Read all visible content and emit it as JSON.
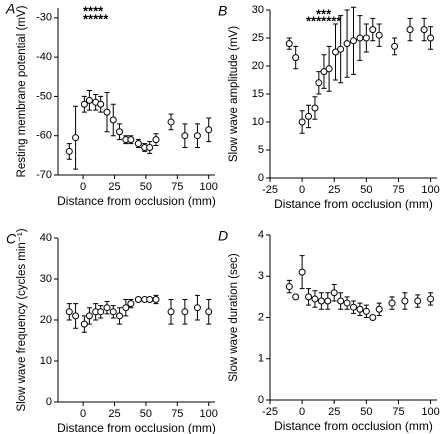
{
  "chart_data": [
    {
      "type": "scatter",
      "panel": "A",
      "xlabel": "Distance from occlusion (mm)",
      "ylabel": "Resting membrane potential (mV)",
      "xlim": [
        -20,
        105
      ],
      "xticks": [
        0,
        25,
        50,
        75,
        100
      ],
      "ylim": [
        -70,
        -27.5
      ],
      "yticks": [
        -70,
        -60,
        -50,
        -40,
        -30
      ],
      "x": [
        -11,
        -6,
        1,
        5,
        10,
        14,
        19,
        24,
        29,
        34,
        38,
        44,
        49,
        53,
        58,
        70,
        81,
        91,
        100
      ],
      "values": [
        -64,
        -60.5,
        -52,
        -51,
        -51.5,
        -52,
        -54,
        -56,
        -59,
        -61,
        -61,
        -62,
        -63,
        -63,
        -61,
        -56.5,
        -60,
        -60,
        -58.5
      ],
      "errors": [
        2,
        8,
        2,
        2.5,
        2,
        2,
        5,
        4,
        2,
        1,
        1,
        1,
        1,
        1.5,
        1.5,
        2,
        3,
        3,
        3
      ],
      "annotations": [
        "****",
        "*****"
      ]
    },
    {
      "type": "scatter",
      "panel": "B",
      "xlabel": "Distance from occlusion (mm)",
      "ylabel": "Slow wave amplitude (mV)",
      "xlim": [
        -25,
        105
      ],
      "xticks": [
        -25,
        0,
        25,
        50,
        75,
        100
      ],
      "ylim": [
        0,
        30
      ],
      "yticks": [
        0,
        5,
        10,
        15,
        20,
        25,
        30
      ],
      "x": [
        -10,
        -5,
        0,
        5,
        10,
        13,
        17,
        21,
        26,
        30,
        35,
        40,
        45,
        50,
        55,
        60,
        72,
        84,
        95,
        100
      ],
      "values": [
        24,
        21.5,
        10,
        11,
        12.5,
        17,
        19,
        19.5,
        22.5,
        23,
        24,
        24.5,
        25,
        25,
        26.5,
        25.5,
        23.5,
        26.5,
        26.5,
        25
      ],
      "errors": [
        1,
        2,
        2,
        2,
        2,
        2,
        3,
        4,
        5,
        6,
        6,
        6,
        4,
        2.5,
        2,
        2,
        1.5,
        2,
        2,
        2
      ],
      "annotations": [
        "***",
        "*******"
      ]
    },
    {
      "type": "scatter",
      "panel": "C",
      "xlabel": "Distance from occlusion (mm)",
      "ylabel": "Slow wave frequency (cycles min⁻¹)",
      "xlim": [
        -20,
        105
      ],
      "xticks": [
        0,
        25,
        50,
        75,
        100
      ],
      "ylim": [
        0,
        40
      ],
      "yticks": [
        0,
        10,
        20,
        30,
        40
      ],
      "x": [
        -11,
        -6,
        1,
        5,
        10,
        14,
        19,
        24,
        29,
        34,
        38,
        44,
        49,
        53,
        58,
        70,
        81,
        91,
        100
      ],
      "values": [
        22,
        21,
        19,
        21,
        22,
        22,
        23,
        22,
        21,
        23,
        24,
        25,
        25,
        25,
        25,
        22,
        22,
        23,
        22
      ],
      "errors": [
        2,
        3,
        2,
        2,
        2,
        1.5,
        1.5,
        1.5,
        2,
        2,
        1,
        0.5,
        0.5,
        0.5,
        1,
        3,
        3,
        3,
        3
      ],
      "annotations": []
    },
    {
      "type": "scatter",
      "panel": "D",
      "xlabel": "Distance from occlusion (mm)",
      "ylabel": "Slow wave duration (sec)",
      "xlim": [
        -25,
        105
      ],
      "xticks": [
        -25,
        0,
        25,
        50,
        75,
        100
      ],
      "ylim": [
        0,
        4
      ],
      "yticks": [
        0,
        1,
        2,
        3,
        4
      ],
      "x": [
        -10,
        -5,
        0,
        5,
        10,
        15,
        20,
        25,
        30,
        35,
        40,
        45,
        50,
        55,
        60,
        70,
        80,
        90,
        100
      ],
      "values": [
        2.75,
        2.5,
        3.1,
        2.5,
        2.45,
        2.4,
        2.4,
        2.6,
        2.4,
        2.35,
        2.25,
        2.2,
        2.15,
        2.0,
        2.2,
        2.35,
        2.4,
        2.4,
        2.45
      ],
      "errors": [
        0.15,
        0.05,
        0.4,
        0.2,
        0.2,
        0.2,
        0.2,
        0.2,
        0.2,
        0.15,
        0.15,
        0.15,
        0.15,
        0.05,
        0.15,
        0.15,
        0.2,
        0.15,
        0.15
      ],
      "annotations": []
    }
  ]
}
